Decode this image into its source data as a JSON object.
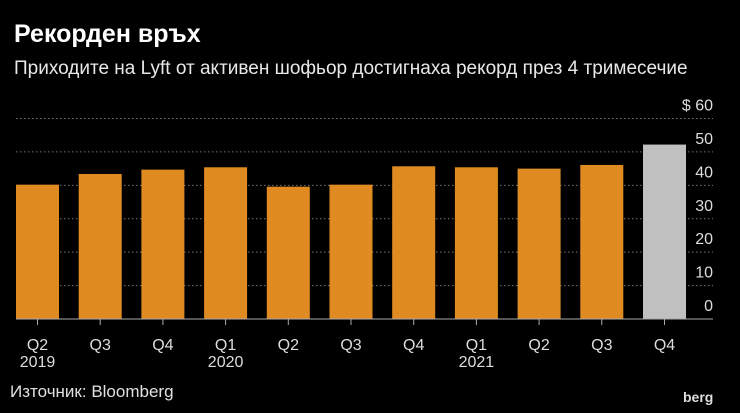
{
  "chart_data": {
    "type": "bar",
    "title": "Рекорден връх",
    "subtitle": "Приходите на Lyft от активен шофьор достигнаха рекорд през 4 тримесечие",
    "categories": [
      "Q2",
      "Q3",
      "Q4",
      "Q1",
      "Q2",
      "Q3",
      "Q4",
      "Q1",
      "Q2",
      "Q3",
      "Q4"
    ],
    "year_labels": [
      "2019",
      "",
      "",
      "2020",
      "",
      "",
      "",
      "2021",
      "",
      "",
      ""
    ],
    "values": [
      40.2,
      43.4,
      44.7,
      45.4,
      39.6,
      40.2,
      45.7,
      45.4,
      45.0,
      46.1,
      52.2
    ],
    "colors": [
      "#e08b22",
      "#e08b22",
      "#e08b22",
      "#e08b22",
      "#e08b22",
      "#e08b22",
      "#e08b22",
      "#e08b22",
      "#e08b22",
      "#e08b22",
      "#c0c0c0"
    ],
    "yticks": [
      0,
      10,
      20,
      30,
      40,
      50,
      60
    ],
    "ytick_labels": [
      "0",
      "10",
      "20",
      "30",
      "40",
      "50",
      "$ 60"
    ],
    "ylim": [
      0,
      60
    ],
    "xlabel": "",
    "ylabel": "",
    "grid": true,
    "source": "Източник: Bloomberg",
    "logo": "berg"
  }
}
